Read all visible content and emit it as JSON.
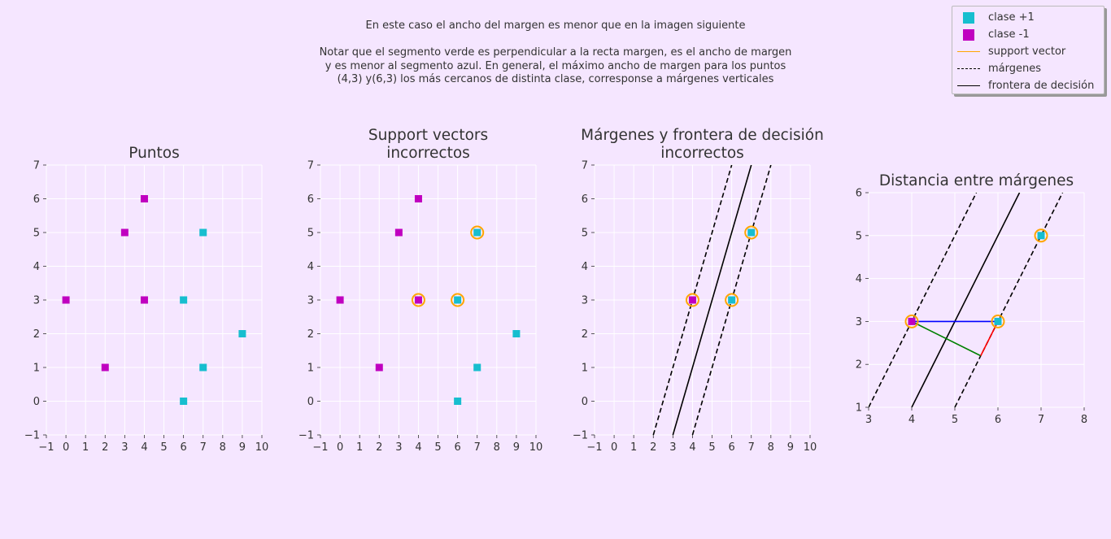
{
  "note": {
    "line1": "En este caso el ancho del margen es menor que en la imagen siguiente",
    "line2": "Notar que el segmento verde es perpendicular a la recta margen, es el ancho de margen",
    "line3": "y es menor al segmento azul. En general, el máximo ancho de margen para los puntos",
    "line4": "(4,3) y(6,3) los más cercanos de distinta clase, corresponse a márgenes verticales"
  },
  "legend": {
    "entries": [
      {
        "label": "clase +1",
        "color": "#17becf"
      },
      {
        "label": "clase -1",
        "color": "#c000c0"
      },
      {
        "label": "support vector",
        "color": "#ffa500"
      },
      {
        "label": "márgenes",
        "color": "#000000"
      },
      {
        "label": "frontera de decisión",
        "color": "#000000"
      }
    ]
  },
  "colors": {
    "pos": "#17becf",
    "neg": "#c000c0",
    "sv": "#ffa500",
    "margin": "#000000",
    "boundary": "#000000",
    "blue": "#0000ff",
    "green": "#008000",
    "red": "#ff0000",
    "grid": "#ffffff"
  },
  "chart_data": [
    {
      "type": "scatter",
      "title": [
        "Puntos"
      ],
      "xlim": [
        -1,
        10
      ],
      "ylim": [
        -1,
        7
      ],
      "xticks": [
        -1,
        0,
        1,
        2,
        3,
        4,
        5,
        6,
        7,
        8,
        9,
        10
      ],
      "xtick_labels": [
        "−1",
        "0",
        "1",
        "2",
        "3",
        "4",
        "5",
        "6",
        "7",
        "8",
        "9",
        "10"
      ],
      "yticks": [
        -1,
        0,
        1,
        2,
        3,
        4,
        5,
        6,
        7
      ],
      "ytick_labels": [
        "−1",
        "0",
        "1",
        "2",
        "3",
        "4",
        "5",
        "6",
        "7"
      ],
      "grid": true,
      "positive": [
        [
          6,
          3
        ],
        [
          7,
          5
        ],
        [
          9,
          2
        ],
        [
          7,
          1
        ],
        [
          6,
          0
        ]
      ],
      "negative": [
        [
          0,
          3
        ],
        [
          3,
          5
        ],
        [
          4,
          6
        ],
        [
          4,
          3
        ],
        [
          2,
          1
        ]
      ],
      "support_vectors": [],
      "lines": [],
      "segments": []
    },
    {
      "type": "scatter",
      "title": [
        "Support vectors",
        "incorrectos"
      ],
      "xlim": [
        -1,
        10
      ],
      "ylim": [
        -1,
        7
      ],
      "xticks": [
        -1,
        0,
        1,
        2,
        3,
        4,
        5,
        6,
        7,
        8,
        9,
        10
      ],
      "xtick_labels": [
        "−1",
        "0",
        "1",
        "2",
        "3",
        "4",
        "5",
        "6",
        "7",
        "8",
        "9",
        "10"
      ],
      "yticks": [
        -1,
        0,
        1,
        2,
        3,
        4,
        5,
        6,
        7
      ],
      "ytick_labels": [
        "−1",
        "0",
        "1",
        "2",
        "3",
        "4",
        "5",
        "6",
        "7"
      ],
      "grid": true,
      "positive": [
        [
          6,
          3
        ],
        [
          7,
          5
        ],
        [
          9,
          2
        ],
        [
          7,
          1
        ],
        [
          6,
          0
        ]
      ],
      "negative": [
        [
          0,
          3
        ],
        [
          3,
          5
        ],
        [
          4,
          6
        ],
        [
          4,
          3
        ],
        [
          2,
          1
        ]
      ],
      "support_vectors": [
        [
          4,
          3
        ],
        [
          6,
          3
        ],
        [
          7,
          5
        ]
      ],
      "lines": [],
      "segments": []
    },
    {
      "type": "line",
      "title": [
        "Márgenes y frontera de decisión",
        "incorrectos"
      ],
      "xlim": [
        -1,
        10
      ],
      "ylim": [
        -1,
        7
      ],
      "xticks": [
        -1,
        0,
        1,
        2,
        3,
        4,
        5,
        6,
        7,
        8,
        9,
        10
      ],
      "xtick_labels": [
        "−1",
        "0",
        "1",
        "2",
        "3",
        "4",
        "5",
        "6",
        "7",
        "8",
        "9",
        "10"
      ],
      "yticks": [
        -1,
        0,
        1,
        2,
        3,
        4,
        5,
        6,
        7
      ],
      "ytick_labels": [
        "−1",
        "0",
        "1",
        "2",
        "3",
        "4",
        "5",
        "6",
        "7"
      ],
      "grid": true,
      "positive": [
        [
          6,
          3
        ],
        [
          7,
          5
        ]
      ],
      "negative": [
        [
          4,
          3
        ]
      ],
      "support_vectors": [
        [
          4,
          3
        ],
        [
          6,
          3
        ],
        [
          7,
          5
        ]
      ],
      "lines": [
        {
          "kind": "margin",
          "x": [
            2,
            6
          ],
          "y": [
            -1,
            7
          ]
        },
        {
          "kind": "boundary",
          "x": [
            3,
            7
          ],
          "y": [
            -1,
            7
          ]
        },
        {
          "kind": "margin",
          "x": [
            4,
            8
          ],
          "y": [
            -1,
            7
          ]
        }
      ],
      "segments": []
    },
    {
      "type": "line",
      "title": [
        "Distancia entre márgenes"
      ],
      "xlim": [
        3,
        8
      ],
      "ylim": [
        1,
        6
      ],
      "xticks": [
        3,
        4,
        5,
        6,
        7,
        8
      ],
      "xtick_labels": [
        "3",
        "4",
        "5",
        "6",
        "7",
        "8"
      ],
      "yticks": [
        1,
        2,
        3,
        4,
        5,
        6
      ],
      "ytick_labels": [
        "1",
        "2",
        "3",
        "4",
        "5",
        "6"
      ],
      "grid": true,
      "positive": [
        [
          6,
          3
        ],
        [
          7,
          5
        ]
      ],
      "negative": [
        [
          4,
          3
        ]
      ],
      "support_vectors": [
        [
          4,
          3
        ],
        [
          6,
          3
        ],
        [
          7,
          5
        ]
      ],
      "lines": [
        {
          "kind": "margin",
          "x": [
            3,
            5.5
          ],
          "y": [
            1,
            6
          ]
        },
        {
          "kind": "boundary",
          "x": [
            4,
            6.5
          ],
          "y": [
            1,
            6
          ]
        },
        {
          "kind": "margin",
          "x": [
            5,
            7.5
          ],
          "y": [
            1,
            6
          ]
        }
      ],
      "segments": [
        {
          "color": "blue",
          "x": [
            4,
            6
          ],
          "y": [
            3,
            3
          ]
        },
        {
          "color": "green",
          "x": [
            4,
            5.6
          ],
          "y": [
            3,
            2.2
          ]
        },
        {
          "color": "red",
          "x": [
            5.6,
            6
          ],
          "y": [
            2.2,
            3
          ]
        }
      ]
    }
  ]
}
